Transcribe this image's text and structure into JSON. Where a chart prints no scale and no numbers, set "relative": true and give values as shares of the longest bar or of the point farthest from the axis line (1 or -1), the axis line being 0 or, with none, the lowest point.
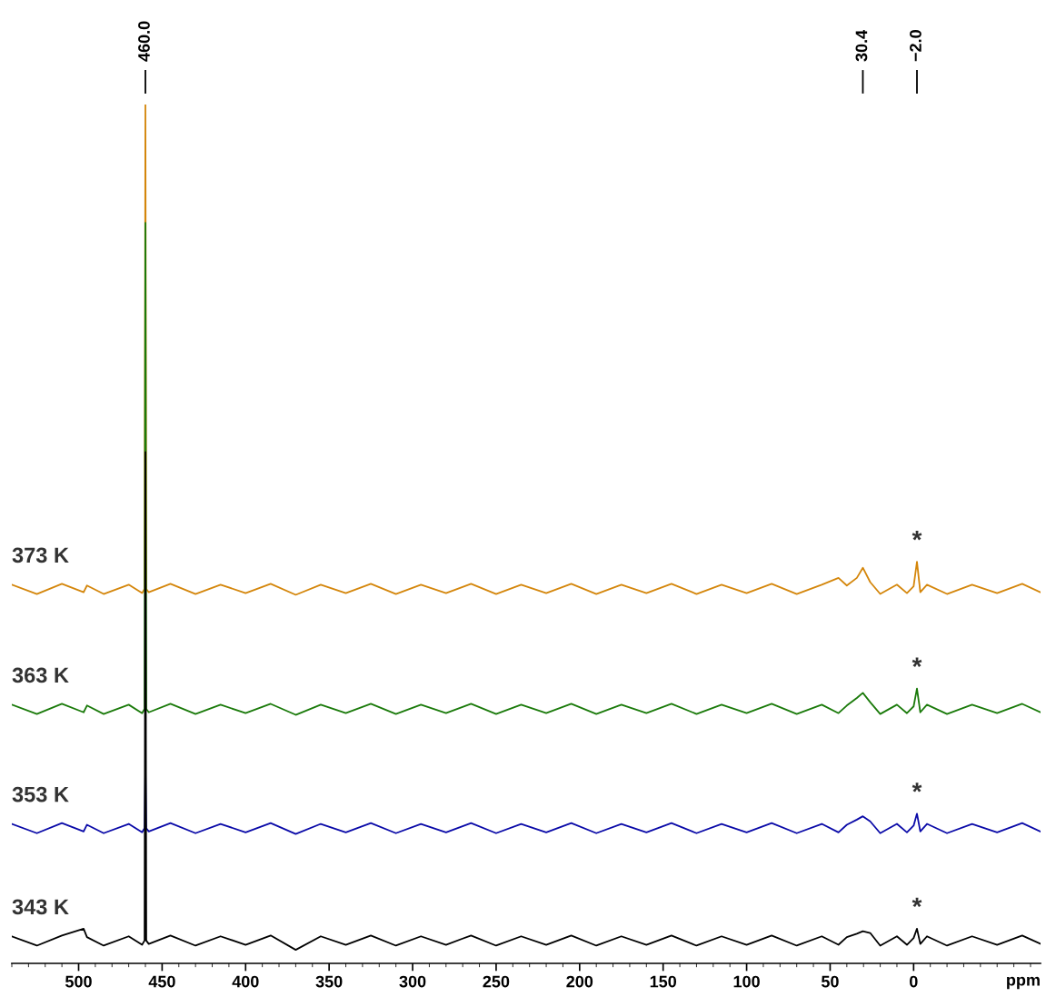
{
  "chart_data": {
    "type": "line",
    "relative": true,
    "xlabel": "ppm",
    "x": [
      540,
      525,
      510,
      497,
      495,
      485,
      470,
      462,
      460.5,
      460,
      459.5,
      458,
      445,
      430,
      415,
      400,
      385,
      370,
      355,
      340,
      325,
      310,
      295,
      280,
      265,
      250,
      235,
      220,
      205,
      190,
      175,
      160,
      145,
      130,
      115,
      100,
      85,
      70,
      55,
      45,
      40,
      34,
      30.4,
      26,
      20,
      10,
      4,
      0,
      -2,
      -4,
      -8,
      -20,
      -35,
      -50,
      -65,
      -76
    ],
    "xlim": [
      540,
      -76
    ],
    "xticks": [
      500,
      450,
      400,
      350,
      300,
      250,
      200,
      150,
      100,
      50,
      0
    ],
    "grid": false,
    "legend": false,
    "marker": "none",
    "line_style": "solid",
    "series": [
      {
        "name": "373 K",
        "color": "#d4860b",
        "values": [
          0.432,
          0.421,
          0.433,
          0.423,
          0.431,
          0.421,
          0.432,
          0.422,
          0.427,
          1.0,
          0.427,
          0.423,
          0.433,
          0.421,
          0.432,
          0.422,
          0.433,
          0.42,
          0.432,
          0.422,
          0.433,
          0.421,
          0.432,
          0.422,
          0.433,
          0.421,
          0.432,
          0.422,
          0.433,
          0.421,
          0.432,
          0.422,
          0.433,
          0.421,
          0.432,
          0.422,
          0.433,
          0.421,
          0.432,
          0.44,
          0.431,
          0.44,
          0.452,
          0.435,
          0.421,
          0.432,
          0.422,
          0.43,
          0.459,
          0.423,
          0.432,
          0.421,
          0.432,
          0.422,
          0.433,
          0.423
        ]
      },
      {
        "name": "363 K",
        "color": "#1a7a0a",
        "values": [
          0.29,
          0.279,
          0.291,
          0.281,
          0.289,
          0.279,
          0.29,
          0.28,
          0.285,
          0.86,
          0.285,
          0.281,
          0.291,
          0.279,
          0.29,
          0.28,
          0.291,
          0.278,
          0.29,
          0.28,
          0.291,
          0.279,
          0.29,
          0.28,
          0.291,
          0.279,
          0.29,
          0.28,
          0.291,
          0.279,
          0.29,
          0.28,
          0.291,
          0.279,
          0.29,
          0.28,
          0.291,
          0.279,
          0.29,
          0.28,
          0.289,
          0.298,
          0.304,
          0.293,
          0.279,
          0.29,
          0.28,
          0.288,
          0.309,
          0.281,
          0.29,
          0.279,
          0.29,
          0.28,
          0.291,
          0.281
        ]
      },
      {
        "name": "353 K",
        "color": "#0a0aa8",
        "values": [
          0.149,
          0.138,
          0.15,
          0.14,
          0.148,
          0.138,
          0.149,
          0.139,
          0.144,
          0.215,
          0.144,
          0.14,
          0.15,
          0.138,
          0.149,
          0.139,
          0.15,
          0.137,
          0.149,
          0.139,
          0.15,
          0.138,
          0.149,
          0.139,
          0.15,
          0.138,
          0.149,
          0.139,
          0.15,
          0.138,
          0.149,
          0.139,
          0.15,
          0.138,
          0.149,
          0.139,
          0.15,
          0.138,
          0.149,
          0.139,
          0.148,
          0.154,
          0.158,
          0.152,
          0.138,
          0.149,
          0.139,
          0.147,
          0.161,
          0.14,
          0.149,
          0.138,
          0.149,
          0.139,
          0.15,
          0.14
        ]
      },
      {
        "name": "343 K",
        "color": "#000000",
        "values": [
          0.016,
          0.005,
          0.017,
          0.025,
          0.015,
          0.005,
          0.016,
          0.006,
          0.011,
          0.589,
          0.011,
          0.007,
          0.017,
          0.005,
          0.016,
          0.006,
          0.017,
          0,
          0.016,
          0.006,
          0.017,
          0.005,
          0.016,
          0.006,
          0.017,
          0.005,
          0.016,
          0.006,
          0.017,
          0.005,
          0.016,
          0.006,
          0.017,
          0.005,
          0.016,
          0.006,
          0.017,
          0.005,
          0.016,
          0.006,
          0.015,
          0.019,
          0.022,
          0.02,
          0.005,
          0.016,
          0.006,
          0.014,
          0.025,
          0.007,
          0.016,
          0.005,
          0.016,
          0.006,
          0.017,
          0.007
        ]
      }
    ],
    "annotations": [
      {
        "text": "460.0",
        "x": 460
      },
      {
        "text": "30.4",
        "x": 30.4
      },
      {
        "text": "−2.0",
        "x": -2
      },
      {
        "text": "*",
        "x": -2,
        "y": 0.459
      },
      {
        "text": "*",
        "x": -2,
        "y": 0.309
      },
      {
        "text": "*",
        "x": -2,
        "y": 0.161
      },
      {
        "text": "*",
        "x": -2,
        "y": 0.025
      }
    ]
  }
}
